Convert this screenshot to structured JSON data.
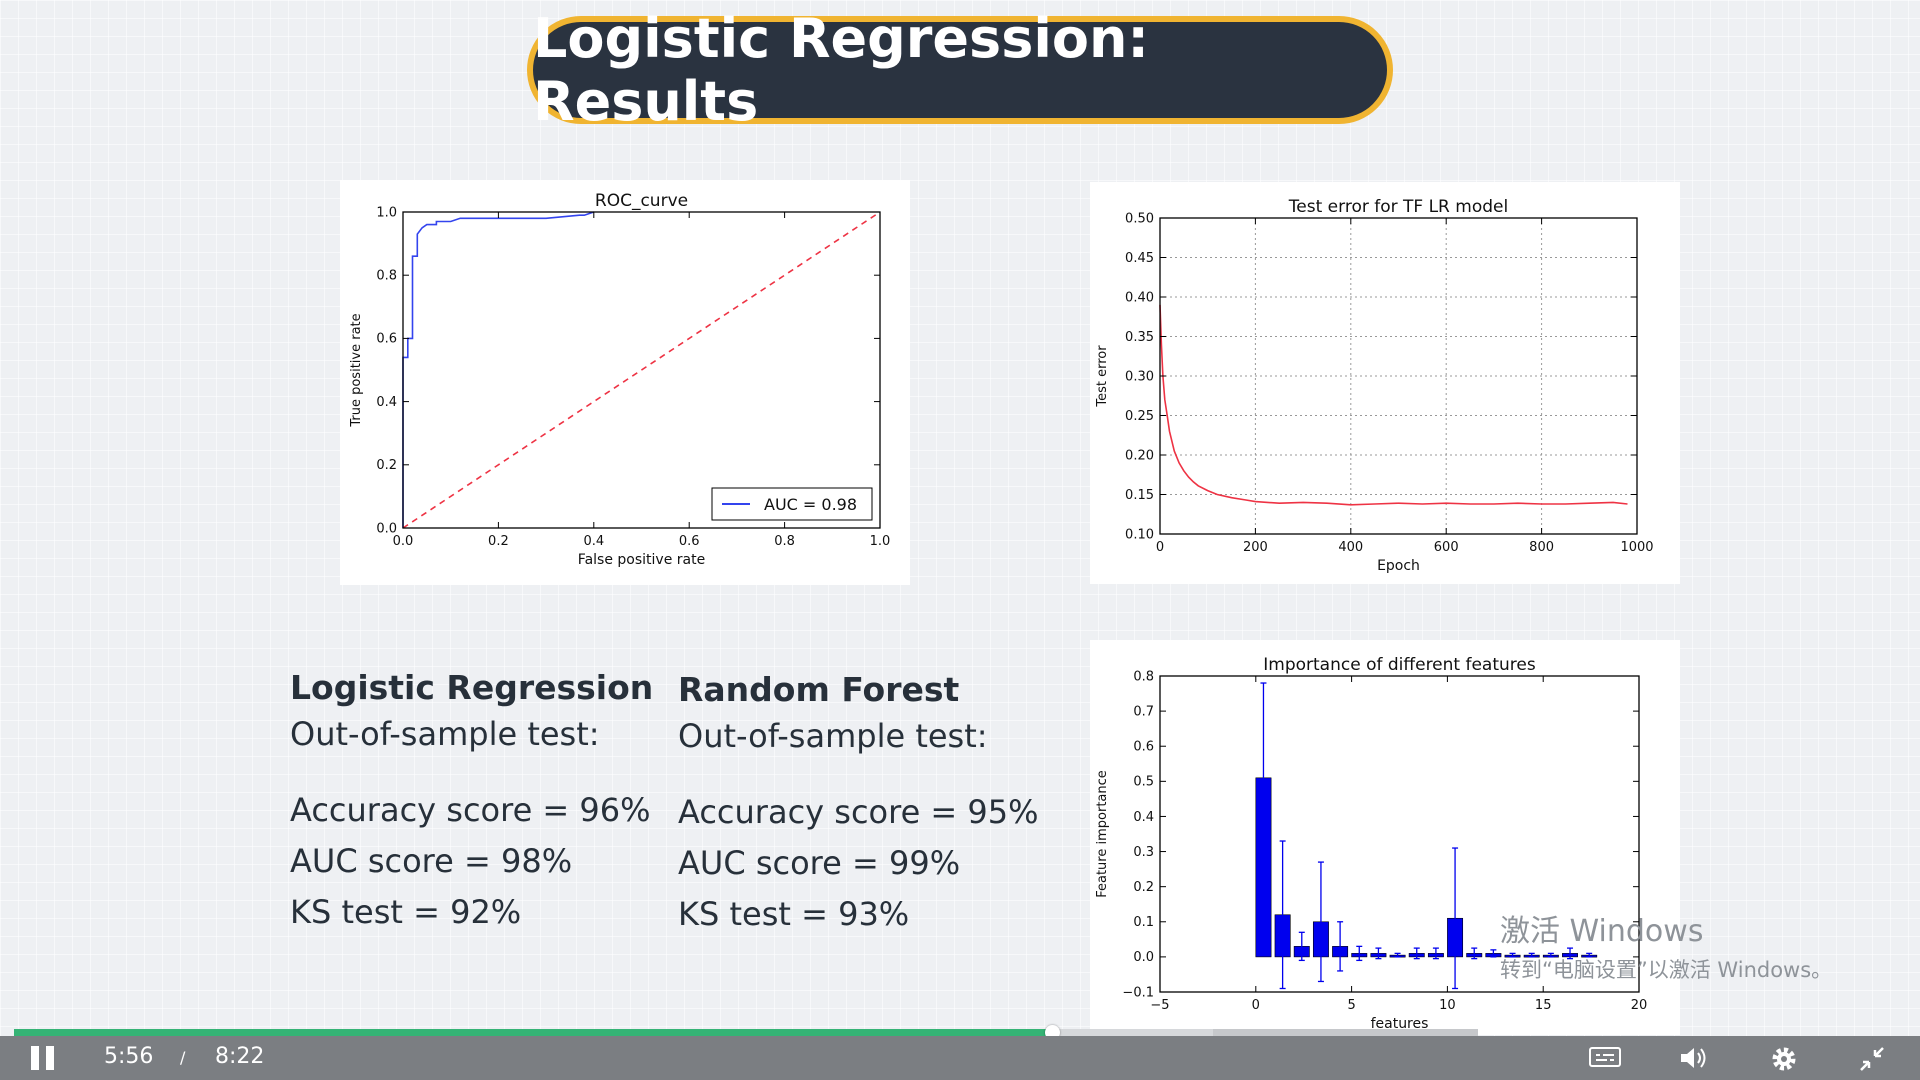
{
  "slide": {
    "title": "Logistic Regression: Results"
  },
  "stats": {
    "lr": {
      "heading": "Logistic Regression",
      "subheading": "Out-of-sample test:",
      "lines": [
        "Accuracy score = 96%",
        "AUC score = 98%",
        "KS test = 92%"
      ]
    },
    "rf": {
      "heading": "Random Forest",
      "subheading": "Out-of-sample test:",
      "lines": [
        "Accuracy score = 95%",
        "AUC score = 99%",
        "KS test = 93%"
      ]
    }
  },
  "chart_data": [
    {
      "type": "line",
      "title": "ROC_curve",
      "xlabel": "False positive rate",
      "ylabel": "True positive rate",
      "xlim": [
        0,
        1
      ],
      "ylim": [
        0,
        1
      ],
      "xticks": [
        "0.0",
        "0.2",
        "0.4",
        "0.6",
        "0.8",
        "1.0"
      ],
      "yticks": [
        "0.0",
        "0.2",
        "0.4",
        "0.6",
        "0.8",
        "1.0"
      ],
      "legend_position": "lower-right",
      "series": [
        {
          "name": "AUC = 0.98",
          "color": "#3344ee",
          "x": [
            0,
            0,
            0.01,
            0.01,
            0.02,
            0.02,
            0.03,
            0.03,
            0.04,
            0.05,
            0.07,
            0.07,
            0.1,
            0.12,
            0.15,
            0.22,
            0.3,
            0.37,
            0.38,
            0.4
          ],
          "y": [
            0,
            0.54,
            0.54,
            0.6,
            0.6,
            0.86,
            0.86,
            0.93,
            0.95,
            0.96,
            0.96,
            0.97,
            0.97,
            0.98,
            0.98,
            0.98,
            0.98,
            0.99,
            0.99,
            1.0
          ]
        },
        {
          "name": "",
          "color": "#ee3344",
          "style": "dashed",
          "x": [
            0,
            1
          ],
          "y": [
            0,
            1
          ]
        }
      ]
    },
    {
      "type": "line",
      "title": "Test error for TF LR model",
      "xlabel": "Epoch",
      "ylabel": "Test error",
      "xlim": [
        0,
        1000
      ],
      "ylim": [
        0.1,
        0.5
      ],
      "grid": true,
      "xticks": [
        "0",
        "200",
        "400",
        "600",
        "800",
        "1000"
      ],
      "yticks": [
        "0.10",
        "0.15",
        "0.20",
        "0.25",
        "0.30",
        "0.35",
        "0.40",
        "0.45",
        "0.50"
      ],
      "series": [
        {
          "color": "#ee3344",
          "x": [
            0,
            3,
            6,
            10,
            15,
            20,
            30,
            40,
            50,
            60,
            70,
            80,
            100,
            120,
            150,
            180,
            200,
            250,
            300,
            350,
            400,
            450,
            500,
            550,
            600,
            650,
            700,
            750,
            800,
            850,
            900,
            950,
            980
          ],
          "y": [
            0.39,
            0.34,
            0.3,
            0.27,
            0.25,
            0.23,
            0.205,
            0.19,
            0.18,
            0.172,
            0.166,
            0.161,
            0.155,
            0.15,
            0.146,
            0.143,
            0.141,
            0.139,
            0.14,
            0.139,
            0.137,
            0.138,
            0.139,
            0.138,
            0.139,
            0.138,
            0.138,
            0.139,
            0.138,
            0.138,
            0.139,
            0.14,
            0.138
          ]
        }
      ]
    },
    {
      "type": "bar",
      "title": "Importance of different features",
      "xlabel": "features",
      "ylabel": "Feature importance",
      "xlim": [
        -5,
        20
      ],
      "ylim": [
        -0.1,
        0.8
      ],
      "xticks": [
        "−5",
        "0",
        "5",
        "10",
        "15",
        "20"
      ],
      "yticks": [
        "−0.1",
        "0.0",
        "0.1",
        "0.2",
        "0.3",
        "0.4",
        "0.5",
        "0.6",
        "0.7",
        "0.8"
      ],
      "series": [
        {
          "color": "#0000ee",
          "x": [
            0,
            1,
            2,
            3,
            4,
            5,
            6,
            7,
            8,
            9,
            10,
            11,
            12,
            13,
            14,
            15,
            16,
            17
          ],
          "values": [
            0.51,
            0.12,
            0.03,
            0.1,
            0.03,
            0.01,
            0.01,
            0.005,
            0.01,
            0.01,
            0.11,
            0.01,
            0.01,
            0.005,
            0.005,
            0.005,
            0.01,
            0.005
          ],
          "errors": [
            0.27,
            0.21,
            0.04,
            0.17,
            0.07,
            0.02,
            0.015,
            0.005,
            0.015,
            0.015,
            0.2,
            0.015,
            0.01,
            0.005,
            0.005,
            0.005,
            0.015,
            0.005
          ]
        }
      ]
    }
  ],
  "watermark": {
    "line1": "激活 Windows",
    "line2": "转到“电脑设置”以激活 Windows。"
  },
  "player": {
    "current_time": "5:56",
    "separator": "/",
    "duration": "8:22",
    "played_fraction": 0.709,
    "buffered_fraction": 0.819,
    "icons": [
      "pause-icon",
      "captions-icon",
      "volume-icon",
      "gear-icon",
      "exit-fullscreen-icon"
    ]
  },
  "colors": {
    "title_bg": "#2a3340",
    "title_border": "#f0b431",
    "progress_played": "#35b375",
    "progress_buffered": "#c6c8cb",
    "control_bar": "#7b7e82"
  }
}
